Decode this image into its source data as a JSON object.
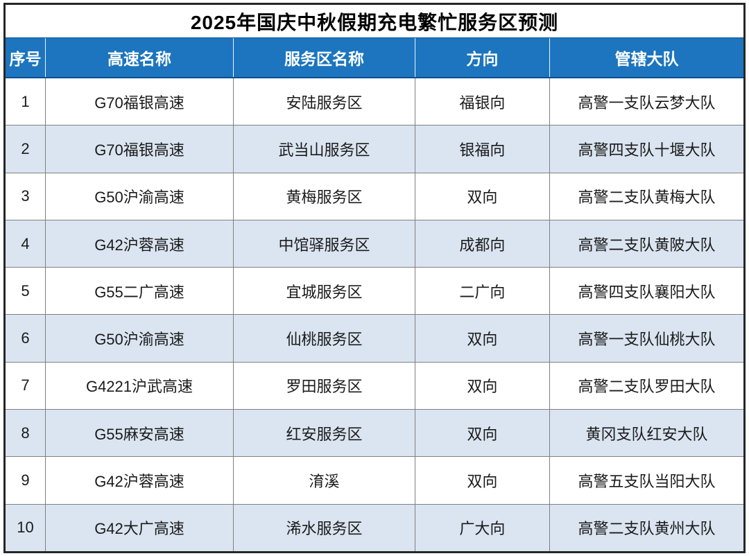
{
  "title": "2025年国庆中秋假期充电繁忙服务区预测",
  "table": {
    "headers": [
      "序号",
      "高速名称",
      "服务区名称",
      "方向",
      "管辖大队"
    ],
    "rows": [
      [
        "1",
        "G70福银高速",
        "安陆服务区",
        "福银向",
        "高警一支队云梦大队"
      ],
      [
        "2",
        "G70福银高速",
        "武当山服务区",
        "银福向",
        "高警四支队十堰大队"
      ],
      [
        "3",
        "G50沪渝高速",
        "黄梅服务区",
        "双向",
        "高警二支队黄梅大队"
      ],
      [
        "4",
        "G42沪蓉高速",
        "中馆驿服务区",
        "成都向",
        "高警二支队黄陂大队"
      ],
      [
        "5",
        "G55二广高速",
        "宜城服务区",
        "二广向",
        "高警四支队襄阳大队"
      ],
      [
        "6",
        "G50沪渝高速",
        "仙桃服务区",
        "双向",
        "高警一支队仙桃大队"
      ],
      [
        "7",
        "G4221沪武高速",
        "罗田服务区",
        "双向",
        "高警二支队罗田大队"
      ],
      [
        "8",
        "G55麻安高速",
        "红安服务区",
        "双向",
        "黄冈支队红安大队"
      ],
      [
        "9",
        "G42沪蓉高速",
        "淯溪",
        "双向",
        "高警五支队当阳大队"
      ],
      [
        "10",
        "G42大广高速",
        "浠水服务区",
        "广大向",
        "高警二支队黄州大队"
      ]
    ]
  },
  "colors": {
    "header_bg": "#1C75BE",
    "header_text": "#FFFFFF",
    "row_alt_bg": "#DBE5F1",
    "grid_line": "#7F7F7F",
    "outer_border": "#262626"
  }
}
